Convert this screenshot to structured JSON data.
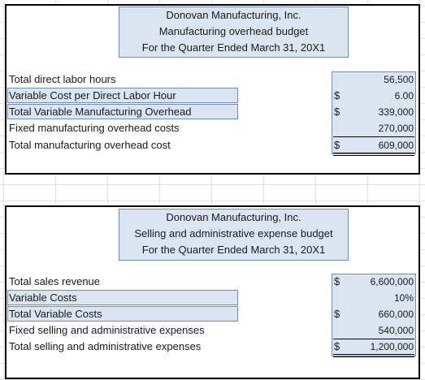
{
  "overhead_budget": {
    "title_lines": [
      "Donovan Manufacturing, Inc.",
      "Manufacturing overhead budget",
      "For the Quarter Ended March 31, 20X1"
    ],
    "rows": [
      {
        "label": "Total direct labor hours",
        "dollar": "",
        "value": "56,500"
      },
      {
        "label": "Variable Cost per Direct Labor Hour",
        "dollar": "$",
        "value": "6.00"
      },
      {
        "label": "Total Variable Manufacturing Overhead",
        "dollar": "$",
        "value": "339,000"
      },
      {
        "label": "Fixed manufacturing overhead costs",
        "dollar": "",
        "value": "270,000"
      },
      {
        "label": "Total manufacturing overhead cost",
        "dollar": "$",
        "value": "609,000"
      }
    ]
  },
  "sga_budget": {
    "title_lines": [
      "Donovan Manufacturing, Inc.",
      "Selling and administrative expense budget",
      "For the Quarter Ended March 31, 20X1"
    ],
    "rows": [
      {
        "label": "Total sales revenue",
        "dollar": "$",
        "value": "6,600,000"
      },
      {
        "label": "Variable Costs",
        "dollar": "",
        "value": "10%"
      },
      {
        "label": "Total Variable Costs",
        "dollar": "$",
        "value": "660,000"
      },
      {
        "label": "Fixed selling and administrative expenses",
        "dollar": "",
        "value": "540,000"
      },
      {
        "label": "Total selling and administrative expenses",
        "dollar": "$",
        "value": "1,200,000"
      }
    ]
  }
}
